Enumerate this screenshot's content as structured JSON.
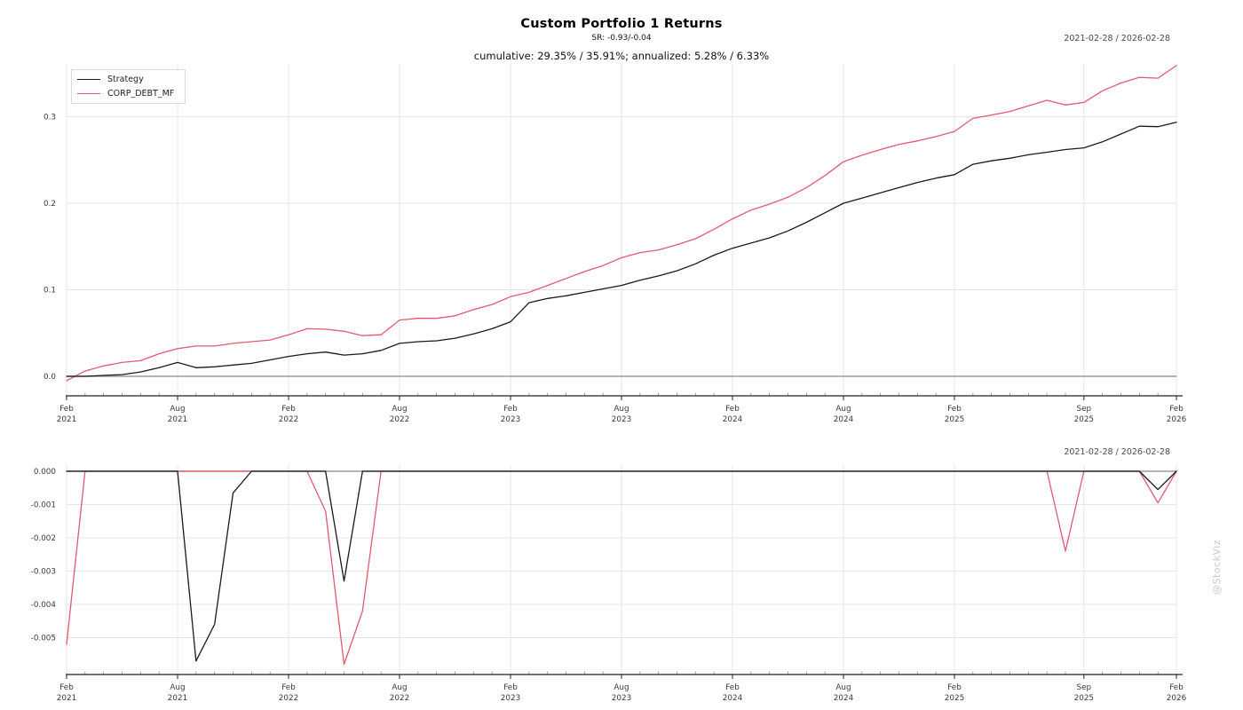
{
  "watermark": "@StockViz",
  "header": {
    "title": "Custom Portfolio 1 Returns",
    "subtitle_sr": "SR: -0.93/-0.04",
    "subtitle_cumulative": "cumulative: 29.35% / 35.91%; annualized: 5.28% / 6.33%"
  },
  "chart_data": [
    {
      "id": "returns",
      "type": "line",
      "title": "Custom Portfolio 1 Returns",
      "subtitle_sr": "SR: -0.93/-0.04",
      "subtitle_cumulative": "cumulative: 29.35% / 35.91%; annualized: 5.28% / 6.33%",
      "date_range": "2021-02-28 / 2026-02-28",
      "legend_position": "top-left",
      "grid": true,
      "ylim": [
        -0.01,
        0.365
      ],
      "y_ticks": [
        {
          "value": 0.0,
          "label": "0.0"
        },
        {
          "value": 0.1,
          "label": "0.1"
        },
        {
          "value": 0.2,
          "label": "0.2"
        },
        {
          "value": 0.3,
          "label": "0.3"
        }
      ],
      "x_months": [
        "2021-02",
        "2021-03",
        "2021-04",
        "2021-05",
        "2021-06",
        "2021-07",
        "2021-08",
        "2021-09",
        "2021-10",
        "2021-11",
        "2021-12",
        "2022-01",
        "2022-02",
        "2022-03",
        "2022-04",
        "2022-05",
        "2022-06",
        "2022-07",
        "2022-08",
        "2022-09",
        "2022-10",
        "2022-11",
        "2022-12",
        "2023-01",
        "2023-02",
        "2023-03",
        "2023-04",
        "2023-05",
        "2023-06",
        "2023-07",
        "2023-08",
        "2023-09",
        "2023-10",
        "2023-11",
        "2023-12",
        "2024-01",
        "2024-02",
        "2024-03",
        "2024-04",
        "2024-05",
        "2024-06",
        "2024-07",
        "2024-08",
        "2024-09",
        "2024-10",
        "2024-11",
        "2024-12",
        "2025-01",
        "2025-02",
        "2025-03",
        "2025-04",
        "2025-05",
        "2025-06",
        "2025-07",
        "2025-08",
        "2025-09",
        "2025-10",
        "2025-11",
        "2025-12",
        "2026-01",
        "2026-02"
      ],
      "x_major_ticks": [
        {
          "index": 0,
          "line1": "Feb",
          "line2": "2021"
        },
        {
          "index": 6,
          "line1": "Aug",
          "line2": "2021"
        },
        {
          "index": 12,
          "line1": "Feb",
          "line2": "2022"
        },
        {
          "index": 18,
          "line1": "Aug",
          "line2": "2022"
        },
        {
          "index": 24,
          "line1": "Feb",
          "line2": "2023"
        },
        {
          "index": 30,
          "line1": "Aug",
          "line2": "2023"
        },
        {
          "index": 36,
          "line1": "Feb",
          "line2": "2024"
        },
        {
          "index": 42,
          "line1": "Aug",
          "line2": "2024"
        },
        {
          "index": 48,
          "line1": "Feb",
          "line2": "2025"
        },
        {
          "index": 55,
          "line1": "Sep",
          "line2": "2025"
        },
        {
          "index": 60,
          "line1": "Feb",
          "line2": "2026"
        }
      ],
      "series": [
        {
          "name": "Strategy",
          "color": "#1a1a1a",
          "values": [
            0.0,
            0.0,
            0.001,
            0.002,
            0.005,
            0.01,
            0.016,
            0.01,
            0.011,
            0.013,
            0.015,
            0.019,
            0.023,
            0.026,
            0.028,
            0.0245,
            0.026,
            0.03,
            0.038,
            0.04,
            0.041,
            0.044,
            0.049,
            0.055,
            0.063,
            0.085,
            0.09,
            0.093,
            0.097,
            0.101,
            0.105,
            0.111,
            0.116,
            0.122,
            0.13,
            0.14,
            0.148,
            0.154,
            0.16,
            0.168,
            0.178,
            0.189,
            0.2,
            0.206,
            0.212,
            0.218,
            0.224,
            0.229,
            0.233,
            0.245,
            0.249,
            0.252,
            0.256,
            0.259,
            0.262,
            0.264,
            0.271,
            0.28,
            0.289,
            0.2885,
            0.2935
          ]
        },
        {
          "name": "CORP_DEBT_MF",
          "color": "#e4596e",
          "values": [
            -0.005,
            0.006,
            0.012,
            0.016,
            0.018,
            0.026,
            0.032,
            0.035,
            0.035,
            0.038,
            0.04,
            0.042,
            0.048,
            0.055,
            0.0545,
            0.052,
            0.047,
            0.048,
            0.065,
            0.067,
            0.067,
            0.07,
            0.077,
            0.083,
            0.092,
            0.097,
            0.105,
            0.113,
            0.121,
            0.128,
            0.137,
            0.143,
            0.146,
            0.152,
            0.159,
            0.17,
            0.182,
            0.192,
            0.199,
            0.207,
            0.218,
            0.232,
            0.248,
            0.2555,
            0.262,
            0.268,
            0.272,
            0.277,
            0.283,
            0.298,
            0.302,
            0.306,
            0.3125,
            0.319,
            0.3135,
            0.3165,
            0.33,
            0.339,
            0.3455,
            0.3445,
            0.3591
          ]
        }
      ]
    },
    {
      "id": "drawdown",
      "type": "line",
      "date_range": "2021-02-28 / 2026-02-28",
      "grid": true,
      "ylim": [
        -0.0061,
        0.0002
      ],
      "y_ticks": [
        {
          "value": 0.0,
          "label": "0.000"
        },
        {
          "value": -0.001,
          "label": "-0.001"
        },
        {
          "value": -0.002,
          "label": "-0.002"
        },
        {
          "value": -0.003,
          "label": "-0.003"
        },
        {
          "value": -0.004,
          "label": "-0.004"
        },
        {
          "value": -0.005,
          "label": "-0.005"
        }
      ],
      "x_months": [
        "2021-02",
        "2021-03",
        "2021-04",
        "2021-05",
        "2021-06",
        "2021-07",
        "2021-08",
        "2021-09",
        "2021-10",
        "2021-11",
        "2021-12",
        "2022-01",
        "2022-02",
        "2022-03",
        "2022-04",
        "2022-05",
        "2022-06",
        "2022-07",
        "2022-08",
        "2022-09",
        "2022-10",
        "2022-11",
        "2022-12",
        "2023-01",
        "2023-02",
        "2023-03",
        "2023-04",
        "2023-05",
        "2023-06",
        "2023-07",
        "2023-08",
        "2023-09",
        "2023-10",
        "2023-11",
        "2023-12",
        "2024-01",
        "2024-02",
        "2024-03",
        "2024-04",
        "2024-05",
        "2024-06",
        "2024-07",
        "2024-08",
        "2024-09",
        "2024-10",
        "2024-11",
        "2024-12",
        "2025-01",
        "2025-02",
        "2025-03",
        "2025-04",
        "2025-05",
        "2025-06",
        "2025-07",
        "2025-08",
        "2025-09",
        "2025-10",
        "2025-11",
        "2025-12",
        "2026-01",
        "2026-02"
      ],
      "x_major_ticks": [
        {
          "index": 0,
          "line1": "Feb",
          "line2": "2021"
        },
        {
          "index": 6,
          "line1": "Aug",
          "line2": "2021"
        },
        {
          "index": 12,
          "line1": "Feb",
          "line2": "2022"
        },
        {
          "index": 18,
          "line1": "Aug",
          "line2": "2022"
        },
        {
          "index": 24,
          "line1": "Feb",
          "line2": "2023"
        },
        {
          "index": 30,
          "line1": "Aug",
          "line2": "2023"
        },
        {
          "index": 36,
          "line1": "Feb",
          "line2": "2024"
        },
        {
          "index": 42,
          "line1": "Aug",
          "line2": "2024"
        },
        {
          "index": 48,
          "line1": "Feb",
          "line2": "2025"
        },
        {
          "index": 55,
          "line1": "Sep",
          "line2": "2025"
        },
        {
          "index": 60,
          "line1": "Feb",
          "line2": "2026"
        }
      ],
      "series": [
        {
          "name": "Strategy",
          "color": "#1a1a1a",
          "values": [
            0,
            0,
            0,
            0,
            0,
            0,
            0,
            -0.0057,
            -0.0046,
            -0.00065,
            0,
            0,
            0,
            0,
            0,
            -0.0033,
            0,
            0,
            0,
            0,
            0,
            0,
            0,
            0,
            0,
            0,
            0,
            0,
            0,
            0,
            0,
            0,
            0,
            0,
            0,
            0,
            0,
            0,
            0,
            0,
            0,
            0,
            0,
            0,
            0,
            0,
            0,
            0,
            0,
            0,
            0,
            0,
            0,
            0,
            0,
            0,
            0,
            0,
            0,
            -0.00055,
            0
          ]
        },
        {
          "name": "CORP_DEBT_MF",
          "color": "#e4596e",
          "values": [
            -0.0052,
            0,
            0,
            0,
            0,
            0,
            0,
            0,
            0,
            0,
            0,
            0,
            0,
            0,
            -0.0012,
            -0.0058,
            -0.0042,
            0,
            0,
            0,
            0,
            0,
            0,
            0,
            0,
            0,
            0,
            0,
            0,
            0,
            0,
            0,
            0,
            0,
            0,
            0,
            0,
            0,
            0,
            0,
            0,
            0,
            0,
            0,
            0,
            0,
            0,
            0,
            0,
            0,
            0,
            0,
            0,
            0,
            -0.0024,
            0,
            0,
            0,
            0,
            -0.00095,
            0
          ]
        }
      ]
    }
  ]
}
